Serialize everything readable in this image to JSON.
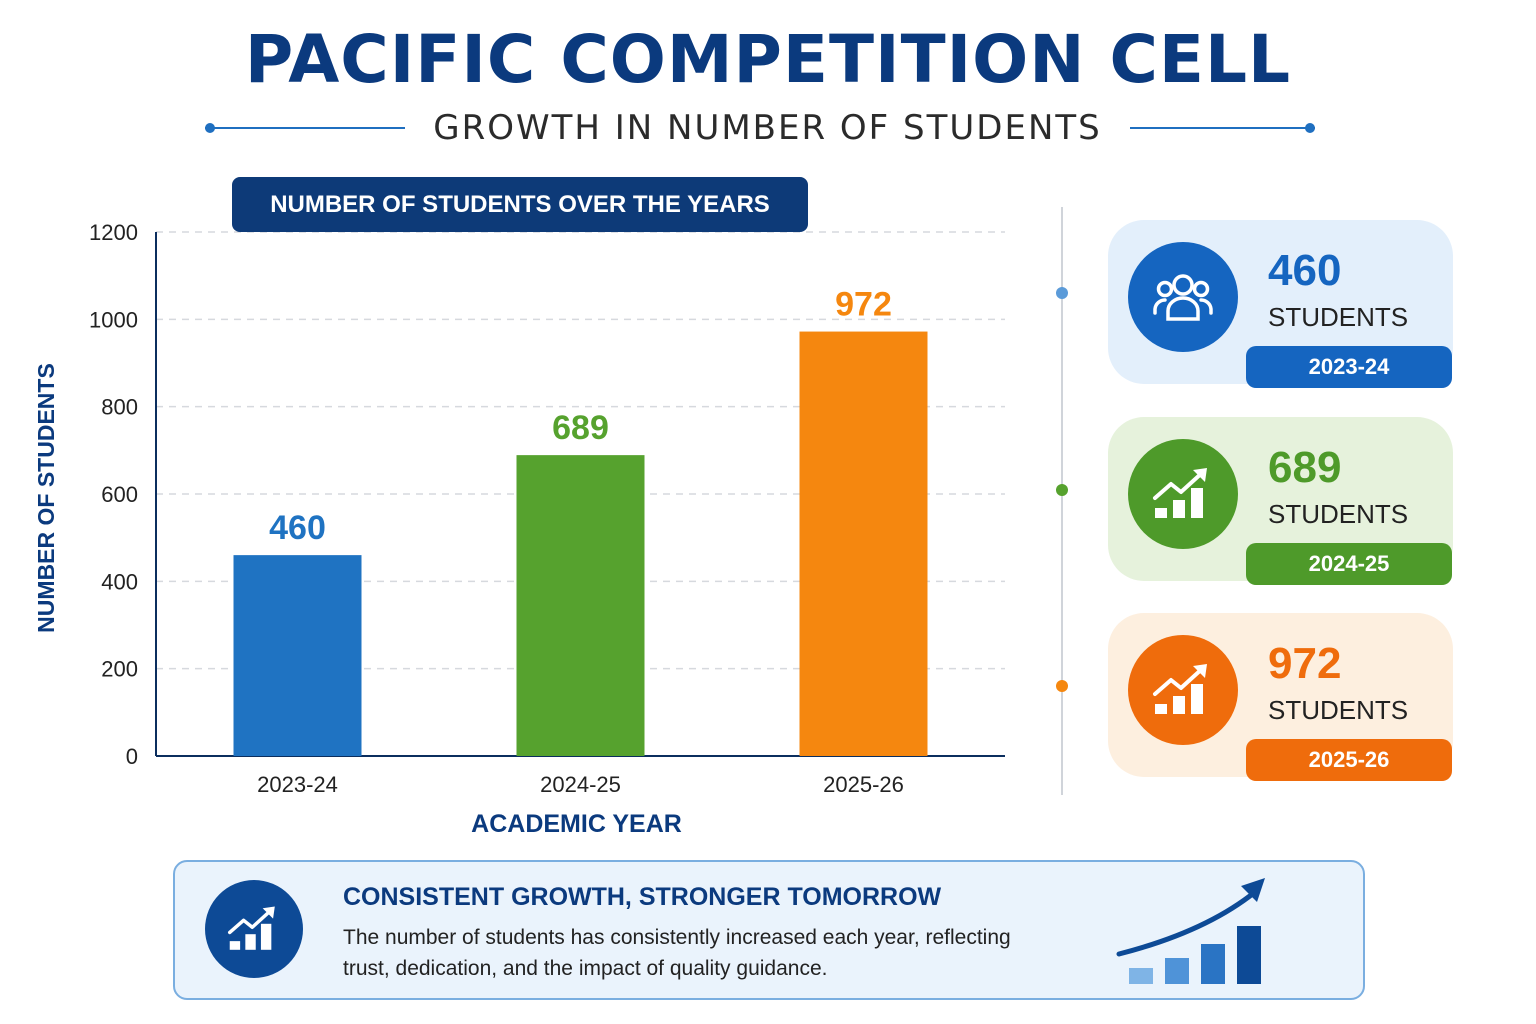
{
  "header": {
    "title": "PACIFIC COMPETITION CELL",
    "subtitle": "GROWTH IN NUMBER OF STUDENTS"
  },
  "chart_badge": "NUMBER OF STUDENTS OVER THE YEARS",
  "chart_data": {
    "type": "bar",
    "categories": [
      "2023-24",
      "2024-25",
      "2025-26"
    ],
    "values": [
      460,
      689,
      972
    ],
    "data_labels": [
      "460",
      "689",
      "972"
    ],
    "bar_colors": [
      "#1f73c2",
      "#56a22e",
      "#f5870f"
    ],
    "title": "NUMBER OF STUDENTS OVER THE YEARS",
    "xlabel": "ACADEMIC YEAR",
    "ylabel": "NUMBER OF STUDENTS",
    "ylim": [
      0,
      1200
    ],
    "yticks": [
      0,
      200,
      400,
      600,
      800,
      1000,
      1200
    ],
    "ytick_labels": [
      "0",
      "200",
      "400",
      "600",
      "800",
      "1000",
      "1200"
    ],
    "grid": true,
    "grid_style": "dashed horizontal"
  },
  "cards": [
    {
      "value": "460",
      "label": "STUDENTS",
      "year": "2023-24",
      "icon": "users-icon",
      "accent": "#1565c0",
      "bg": "#e3effb"
    },
    {
      "value": "689",
      "label": "STUDENTS",
      "year": "2024-25",
      "icon": "growth-chart-icon",
      "accent": "#4e9a2a",
      "bg": "#e6f2dc"
    },
    {
      "value": "972",
      "label": "STUDENTS",
      "year": "2025-26",
      "icon": "growth-chart-icon",
      "accent": "#ef6c0c",
      "bg": "#fdefdf"
    }
  ],
  "callout": {
    "heading": "CONSISTENT GROWTH, STRONGER TOMORROW",
    "body": "The number of students has consistently increased each year, reflecting trust, dedication, and the impact of quality guidance.",
    "icon": "growth-chart-icon"
  },
  "colors": {
    "navy": "#0b3a7e",
    "blue": "#1f73c2",
    "green": "#56a22e",
    "orange": "#f5870f"
  }
}
